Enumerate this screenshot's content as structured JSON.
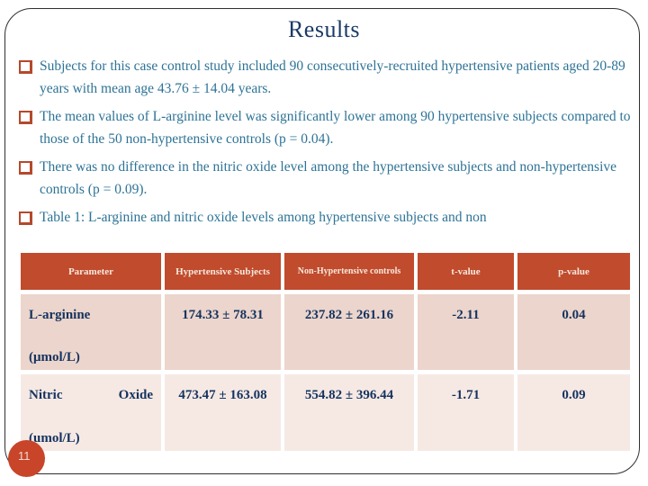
{
  "slide": {
    "title": "Results",
    "page_number": "11",
    "bullets": [
      "Subjects for this case control study included 90 consecutively-recruited hypertensive patients aged 20-89 years with mean age 43.76 ± 14.04 years.",
      "The mean values of L-arginine level was significantly lower among 90 hypertensive subjects compared to those of the 50 non-hypertensive controls (p = 0.04).",
      "There was no difference in the nitric oxide level among the hypertensive subjects and non-hypertensive controls (p = 0.09).",
      "Table 1: L-arginine and nitric oxide levels among hypertensive subjects and non"
    ],
    "table": {
      "headers": [
        "Parameter",
        "Hypertensive Subjects",
        "Non-Hypertensive controls",
        "t-value",
        "p-value"
      ],
      "rows": [
        {
          "parameter": "L-arginine",
          "unit": "(μmol/L)",
          "hypertensive": "174.33 ± 78.31",
          "non_hypertensive": "237.82 ± 261.16",
          "t_value": "-2.11",
          "p_value": "0.04"
        },
        {
          "parameter": "Nitric Oxide",
          "unit": "(umol/L)",
          "hypertensive": "473.47 ± 163.08",
          "non_hypertensive": "554.82 ± 396.44",
          "t_value": "-1.71",
          "p_value": "0.09"
        }
      ]
    },
    "colors": {
      "title_text": "#1b3a66",
      "bullet_text": "#2d7396",
      "bullet_square": "#b4492c",
      "table_header_bg": "#c04b2d",
      "table_header_text": "#f8e8dc",
      "table_row1_bg": "#ecd5cc",
      "table_row2_bg": "#f6e9e4",
      "table_body_text": "#15335f",
      "page_badge_bg": "#c8452a",
      "frame_border": "#2f2f2f"
    }
  }
}
